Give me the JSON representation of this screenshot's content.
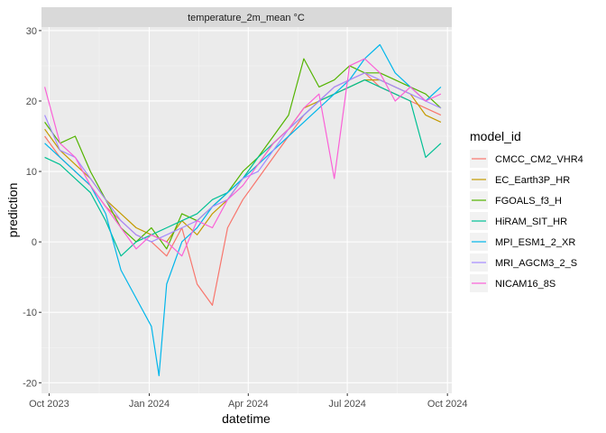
{
  "chart_data": {
    "type": "line",
    "facet_title": "temperature_2m_mean °C",
    "xlabel": "datetime",
    "ylabel": "prediction",
    "x_range": [
      "2023-09-24",
      "2024-10-05"
    ],
    "ylim": [
      -21.5,
      30.5
    ],
    "x_ticks": [
      {
        "date": "2023-10-01",
        "label": "Oct 2023"
      },
      {
        "date": "2024-01-01",
        "label": "Jan 2024"
      },
      {
        "date": "2024-04-01",
        "label": "Apr 2024"
      },
      {
        "date": "2024-07-01",
        "label": "Jul 2024"
      },
      {
        "date": "2024-10-01",
        "label": "Oct 2024"
      }
    ],
    "y_ticks": [
      -20,
      -10,
      0,
      10,
      20,
      30
    ],
    "grid": true,
    "legend": {
      "title": "model_id",
      "position": "right"
    },
    "series": [
      {
        "name": "CMCC_CM2_VHR4",
        "color": "#F8766D",
        "x": [
          "2023-09-27",
          "2023-10-11",
          "2023-10-25",
          "2023-11-08",
          "2023-11-22",
          "2023-12-06",
          "2023-12-20",
          "2024-01-03",
          "2024-01-17",
          "2024-01-31",
          "2024-02-14",
          "2024-02-28",
          "2024-03-13",
          "2024-03-27",
          "2024-04-10",
          "2024-04-24",
          "2024-05-08",
          "2024-05-22",
          "2024-06-05",
          "2024-06-19",
          "2024-07-03",
          "2024-07-17",
          "2024-07-31",
          "2024-08-14",
          "2024-08-28",
          "2024-09-11",
          "2024-09-25"
        ],
        "y": [
          15,
          12,
          10,
          8,
          5,
          3,
          1,
          0,
          -2,
          2,
          -6,
          -9,
          2,
          6,
          9,
          12,
          15,
          18,
          20,
          22,
          23,
          24,
          22,
          21,
          20,
          19,
          18
        ]
      },
      {
        "name": "EC_Earth3P_HR",
        "color": "#C49A00",
        "x": [
          "2023-09-27",
          "2023-10-11",
          "2023-10-25",
          "2023-11-08",
          "2023-11-22",
          "2023-12-06",
          "2023-12-20",
          "2024-01-03",
          "2024-01-17",
          "2024-01-31",
          "2024-02-14",
          "2024-02-28",
          "2024-03-13",
          "2024-03-27",
          "2024-04-10",
          "2024-04-24",
          "2024-05-08",
          "2024-05-22",
          "2024-06-05",
          "2024-06-19",
          "2024-07-03",
          "2024-07-17",
          "2024-07-31",
          "2024-08-14",
          "2024-08-28",
          "2024-09-11",
          "2024-09-25"
        ],
        "y": [
          16,
          13,
          11,
          9,
          6,
          4,
          2,
          1,
          0,
          3,
          1,
          4,
          6,
          9,
          11,
          14,
          16,
          19,
          20,
          21,
          22,
          23,
          23,
          22,
          21,
          18,
          17
        ]
      },
      {
        "name": "FGOALS_f3_H",
        "color": "#53B400",
        "x": [
          "2023-09-27",
          "2023-10-11",
          "2023-10-25",
          "2023-11-08",
          "2023-11-22",
          "2023-12-06",
          "2023-12-20",
          "2024-01-03",
          "2024-01-17",
          "2024-01-31",
          "2024-02-14",
          "2024-02-28",
          "2024-03-13",
          "2024-03-27",
          "2024-04-10",
          "2024-04-24",
          "2024-05-08",
          "2024-05-22",
          "2024-06-05",
          "2024-06-19",
          "2024-07-03",
          "2024-07-17",
          "2024-07-31",
          "2024-08-14",
          "2024-08-28",
          "2024-09-11",
          "2024-09-25"
        ],
        "y": [
          17,
          14,
          15,
          10,
          6,
          2,
          0,
          2,
          -1,
          4,
          3,
          5,
          7,
          10,
          12,
          15,
          18,
          26,
          22,
          23,
          25,
          24,
          24,
          23,
          22,
          21,
          19
        ]
      },
      {
        "name": "HiRAM_SIT_HR",
        "color": "#00C094",
        "x": [
          "2023-09-27",
          "2023-10-11",
          "2023-10-25",
          "2023-11-08",
          "2023-11-22",
          "2023-12-06",
          "2023-12-20",
          "2024-01-03",
          "2024-01-17",
          "2024-01-31",
          "2024-02-14",
          "2024-02-28",
          "2024-03-13",
          "2024-03-27",
          "2024-04-10",
          "2024-04-24",
          "2024-05-08",
          "2024-05-22",
          "2024-06-05",
          "2024-06-19",
          "2024-07-03",
          "2024-07-17",
          "2024-07-31",
          "2024-08-14",
          "2024-08-28",
          "2024-09-11",
          "2024-09-25"
        ],
        "y": [
          12,
          11,
          9,
          7,
          3,
          -2,
          0,
          1,
          2,
          3,
          4,
          6,
          7,
          9,
          12,
          14,
          16,
          18,
          20,
          21,
          22,
          23,
          22,
          21,
          20,
          12,
          14
        ]
      },
      {
        "name": "MPI_ESM1_2_XR",
        "color": "#00B6EB",
        "x": [
          "2023-09-27",
          "2023-10-11",
          "2023-10-25",
          "2023-11-08",
          "2023-11-22",
          "2023-12-06",
          "2023-12-20",
          "2024-01-03",
          "2024-01-10",
          "2024-01-17",
          "2024-01-31",
          "2024-02-14",
          "2024-02-28",
          "2024-03-13",
          "2024-03-27",
          "2024-04-10",
          "2024-04-24",
          "2024-05-08",
          "2024-05-22",
          "2024-06-05",
          "2024-06-19",
          "2024-07-03",
          "2024-07-17",
          "2024-07-31",
          "2024-08-14",
          "2024-08-28",
          "2024-09-11",
          "2024-09-25"
        ],
        "y": [
          14,
          12,
          10,
          8,
          4,
          -4,
          -8,
          -12,
          -19,
          -6,
          0,
          2,
          5,
          7,
          9,
          11,
          13,
          15,
          17,
          19,
          21,
          23,
          26,
          28,
          24,
          22,
          20,
          22
        ]
      },
      {
        "name": "MRI_AGCM3_2_S",
        "color": "#A58AFF",
        "x": [
          "2023-09-27",
          "2023-10-11",
          "2023-10-25",
          "2023-11-08",
          "2023-11-22",
          "2023-12-06",
          "2023-12-20",
          "2024-01-03",
          "2024-01-17",
          "2024-01-31",
          "2024-02-14",
          "2024-02-28",
          "2024-03-13",
          "2024-03-27",
          "2024-04-10",
          "2024-04-24",
          "2024-05-08",
          "2024-05-22",
          "2024-06-05",
          "2024-06-19",
          "2024-07-03",
          "2024-07-17",
          "2024-07-31",
          "2024-08-14",
          "2024-08-28",
          "2024-09-11",
          "2024-09-25"
        ],
        "y": [
          18,
          13,
          12,
          9,
          6,
          3,
          1,
          0,
          1,
          2,
          3,
          5,
          6,
          9,
          10,
          13,
          16,
          18,
          20,
          22,
          23,
          24,
          23,
          22,
          21,
          20,
          19
        ]
      },
      {
        "name": "NICAM16_8S",
        "color": "#FB61D7",
        "x": [
          "2023-09-27",
          "2023-10-11",
          "2023-10-25",
          "2023-11-08",
          "2023-11-22",
          "2023-12-06",
          "2023-12-20",
          "2024-01-03",
          "2024-01-17",
          "2024-01-31",
          "2024-02-14",
          "2024-02-28",
          "2024-03-13",
          "2024-03-27",
          "2024-04-10",
          "2024-04-24",
          "2024-05-08",
          "2024-05-22",
          "2024-06-05",
          "2024-06-19",
          "2024-07-03",
          "2024-07-17",
          "2024-07-31",
          "2024-08-14",
          "2024-08-28",
          "2024-09-11",
          "2024-09-25"
        ],
        "y": [
          22,
          14,
          12,
          8,
          5,
          2,
          -1,
          1,
          0,
          -2,
          3,
          2,
          6,
          8,
          11,
          14,
          16,
          19,
          21,
          9,
          25,
          26,
          24,
          20,
          22,
          20,
          21
        ]
      }
    ]
  }
}
